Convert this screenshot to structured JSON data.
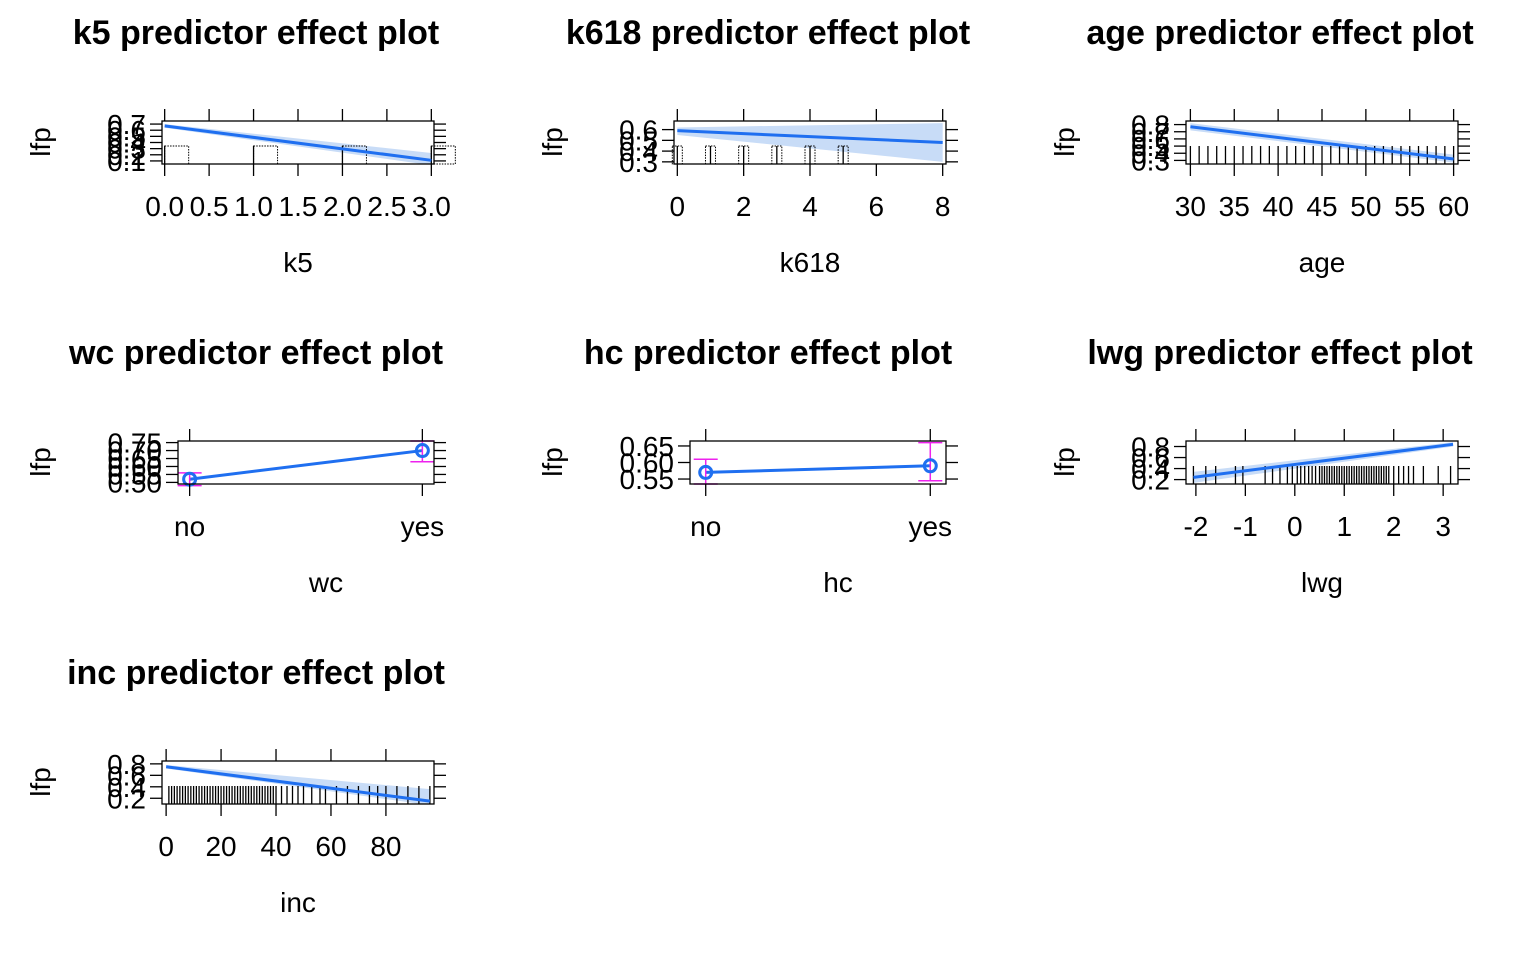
{
  "colors": {
    "line": "#1f6ff0",
    "band": "#c8dcf7",
    "error_bar": "#ee22ee",
    "axis": "#000000"
  },
  "chart_data": [
    {
      "id": "k5",
      "type": "line",
      "title": "k5 predictor effect plot",
      "xlabel": "k5",
      "ylabel": "lfp",
      "xlim": [
        -0.03,
        3.03
      ],
      "ylim": [
        0.05,
        0.75
      ],
      "xticks": [
        0,
        0.5,
        1,
        1.5,
        2,
        2.5,
        3
      ],
      "xticklabels": [
        "0.0",
        "0.5",
        "1.0",
        "1.5",
        "2.0",
        "2.5",
        "3.0"
      ],
      "yticks": [
        0.1,
        0.2,
        0.3,
        0.4,
        0.5,
        0.6,
        0.7
      ],
      "yticklabels": [
        "0.1",
        "0.2",
        "0.3",
        "0.4",
        "0.5",
        "0.6",
        "0.7"
      ],
      "x": [
        0,
        3
      ],
      "y": [
        0.67,
        0.11
      ],
      "band_lower": [
        0.64,
        0.03
      ],
      "band_upper": [
        0.7,
        0.23
      ],
      "rug": [
        0,
        1,
        2,
        3
      ]
    },
    {
      "id": "k618",
      "type": "line",
      "title": "k618 predictor effect plot",
      "xlabel": "k618",
      "ylabel": "lfp",
      "xlim": [
        -0.1,
        8.1
      ],
      "ylim": [
        0.28,
        0.68
      ],
      "xticks": [
        0,
        2,
        4,
        6,
        8
      ],
      "xticklabels": [
        "0",
        "2",
        "4",
        "6",
        "8"
      ],
      "yticks": [
        0.3,
        0.4,
        0.5,
        0.6
      ],
      "yticklabels": [
        "0.3",
        "0.4",
        "0.5",
        "0.6"
      ],
      "x": [
        0,
        8
      ],
      "y": [
        0.59,
        0.48
      ],
      "band_lower": [
        0.55,
        0.3
      ],
      "band_upper": [
        0.62,
        0.66
      ],
      "rug": [
        0,
        1,
        2,
        3,
        4,
        5
      ]
    },
    {
      "id": "age",
      "type": "line",
      "title": "age predictor effect plot",
      "xlabel": "age",
      "ylabel": "lfp",
      "xlim": [
        29.5,
        60.5
      ],
      "ylim": [
        0.25,
        0.85
      ],
      "xticks": [
        30,
        35,
        40,
        45,
        50,
        55,
        60
      ],
      "xticklabels": [
        "30",
        "35",
        "40",
        "45",
        "50",
        "55",
        "60"
      ],
      "yticks": [
        0.3,
        0.4,
        0.5,
        0.6,
        0.7,
        0.8
      ],
      "yticklabels": [
        "0.3",
        "0.4",
        "0.5",
        "0.6",
        "0.7",
        "0.8"
      ],
      "x": [
        30,
        60
      ],
      "y": [
        0.77,
        0.32
      ],
      "band_lower": [
        0.72,
        0.27
      ],
      "band_upper": [
        0.82,
        0.38
      ],
      "rug_range": [
        30,
        60,
        1
      ]
    },
    {
      "id": "wc",
      "type": "line",
      "title": "wc predictor effect plot",
      "xlabel": "wc",
      "ylabel": "lfp",
      "categories": [
        "no",
        "yes"
      ],
      "xlim": [
        -0.05,
        1.05
      ],
      "ylim": [
        0.49,
        0.76
      ],
      "yticks": [
        0.5,
        0.55,
        0.6,
        0.65,
        0.7,
        0.75
      ],
      "yticklabels": [
        "0.50",
        "0.55",
        "0.60",
        "0.65",
        "0.70",
        "0.75"
      ],
      "x": [
        0,
        1
      ],
      "y": [
        0.52,
        0.7
      ],
      "err_lower": [
        0.48,
        0.63
      ],
      "err_upper": [
        0.56,
        0.76
      ]
    },
    {
      "id": "hc",
      "type": "line",
      "title": "hc predictor effect plot",
      "xlabel": "hc",
      "ylabel": "lfp",
      "categories": [
        "no",
        "yes"
      ],
      "xlim": [
        -0.07,
        1.07
      ],
      "ylim": [
        0.535,
        0.665
      ],
      "yticks": [
        0.55,
        0.6,
        0.65
      ],
      "yticklabels": [
        "0.55",
        "0.60",
        "0.65"
      ],
      "x": [
        0,
        1
      ],
      "y": [
        0.57,
        0.59
      ],
      "err_lower": [
        0.535,
        0.545
      ],
      "err_upper": [
        0.61,
        0.66
      ]
    },
    {
      "id": "lwg",
      "type": "line",
      "title": "lwg predictor effect plot",
      "xlabel": "lwg",
      "ylabel": "lfp",
      "xlim": [
        -2.2,
        3.3
      ],
      "ylim": [
        0.12,
        0.9
      ],
      "xticks": [
        -2,
        -1,
        0,
        1,
        2,
        3
      ],
      "xticklabels": [
        "-2",
        "-1",
        "0",
        "1",
        "2",
        "3"
      ],
      "yticks": [
        0.2,
        0.4,
        0.6,
        0.8
      ],
      "yticklabels": [
        "0.2",
        "0.4",
        "0.6",
        "0.8"
      ],
      "x": [
        -2.05,
        3.2
      ],
      "y": [
        0.24,
        0.84
      ],
      "band_lower": [
        0.14,
        0.8
      ],
      "band_upper": [
        0.34,
        0.88
      ],
      "rug": [
        -2.05,
        -1.8,
        -1.6,
        -1.2,
        -1.05,
        -0.6,
        -0.45,
        -0.3,
        -0.15,
        -0.05,
        0.05,
        0.12,
        0.2,
        0.28,
        0.35,
        0.42,
        0.5,
        0.55,
        0.6,
        0.65,
        0.7,
        0.75,
        0.8,
        0.85,
        0.9,
        0.95,
        1.0,
        1.05,
        1.1,
        1.15,
        1.2,
        1.25,
        1.3,
        1.35,
        1.4,
        1.45,
        1.5,
        1.55,
        1.6,
        1.65,
        1.7,
        1.75,
        1.8,
        1.85,
        1.9,
        2.0,
        2.1,
        2.2,
        2.3,
        2.4,
        2.6,
        2.9,
        3.15
      ]
    },
    {
      "id": "inc",
      "type": "line",
      "title": "inc predictor effect plot",
      "xlabel": "inc",
      "ylabel": "lfp",
      "xlim": [
        -1.5,
        97.5
      ],
      "ylim": [
        0.1,
        0.85
      ],
      "xticks": [
        0,
        20,
        40,
        60,
        80
      ],
      "xticklabels": [
        "0",
        "20",
        "40",
        "60",
        "80"
      ],
      "yticks": [
        0.2,
        0.4,
        0.6,
        0.8
      ],
      "yticklabels": [
        "0.2",
        "0.4",
        "0.6",
        "0.8"
      ],
      "x": [
        0,
        96
      ],
      "y": [
        0.75,
        0.15
      ],
      "band_lower": [
        0.72,
        0.08
      ],
      "band_upper": [
        0.78,
        0.36
      ],
      "rug": [
        1,
        2,
        3,
        4,
        5,
        6,
        7,
        8,
        9,
        10,
        11,
        12,
        13,
        14,
        15,
        16,
        17,
        18,
        19,
        20,
        21,
        22,
        23,
        24,
        25,
        26,
        27,
        28,
        29,
        30,
        31,
        32,
        33,
        34,
        35,
        36,
        37,
        38,
        39,
        40,
        42,
        44,
        46,
        48,
        50,
        53,
        56,
        58,
        62,
        66,
        70,
        74,
        77,
        80,
        84,
        88,
        92,
        96
      ]
    }
  ]
}
